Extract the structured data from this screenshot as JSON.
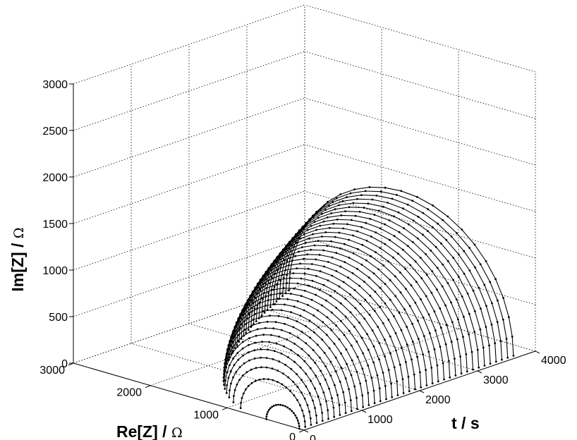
{
  "colors": {
    "background": "#ffffff",
    "axes": "#000000",
    "grid": "#000000",
    "data": "#000000"
  },
  "chart_data": {
    "type": "surface3d",
    "title": "",
    "xlabel": "t / s",
    "ylabel": "Re[Z] / Ω",
    "zlabel": "Im[Z] / Ω",
    "x_axis": {
      "label_text": "t / s",
      "range": [
        0,
        4000
      ],
      "ticks": [
        0,
        1000,
        2000,
        3000,
        4000
      ],
      "tick_labels": [
        "0",
        "1000",
        "2000",
        "3000",
        "4000"
      ]
    },
    "y_axis": {
      "label_text": "Re[Z] / ",
      "unit_symbol": "Ω",
      "range": [
        0,
        3000
      ],
      "ticks": [
        0,
        1000,
        2000,
        3000
      ],
      "tick_labels": [
        "0",
        "1000",
        "2000",
        "3000"
      ]
    },
    "z_axis": {
      "label_text": "Im[Z] / ",
      "unit_symbol": "Ω",
      "range": [
        0,
        3000
      ],
      "ticks": [
        0,
        500,
        1000,
        1500,
        2000,
        2500,
        3000
      ],
      "tick_labels": [
        "0",
        "500",
        "1000",
        "1500",
        "2000",
        "2500",
        "3000"
      ]
    },
    "grid": true,
    "box": "open three-panel box with dotted gridlines",
    "series_description_time_s": [
      0,
      3700
    ],
    "spectra": {
      "count": 38,
      "t_start_s": 0,
      "t_end_s": 3700,
      "points_per_spectrum": 22,
      "offset_re_ohm": 60,
      "diameter_re_ohm_first": 430,
      "diameter_re_ohm_last": 2920,
      "apex_im_ohm_first": 200,
      "apex_im_ohm_last": 1420
    },
    "marker": "dot",
    "linestyle": "solid"
  }
}
